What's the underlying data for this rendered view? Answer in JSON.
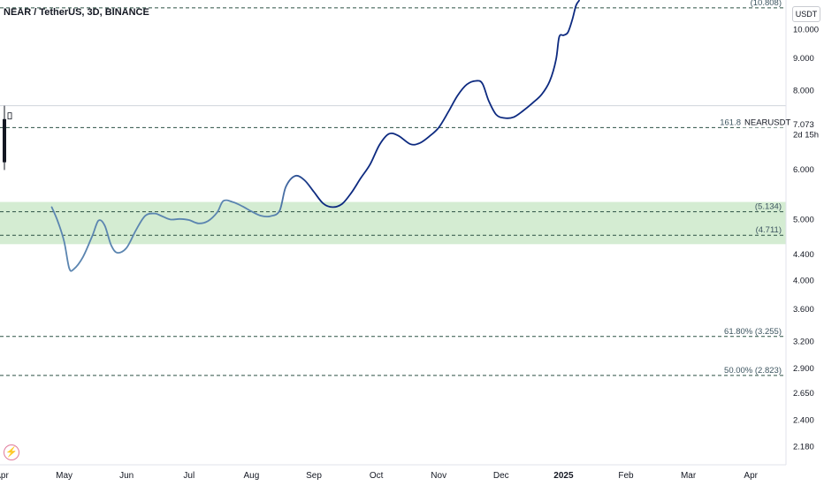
{
  "header": {
    "title": "NEAR / TetherUS, 3D, BINANCE"
  },
  "price_axis": {
    "unit": "USDT",
    "last_price": "7.073",
    "countdown": "2d 15h",
    "symbol_tag": "NEARUSDT"
  },
  "chart_data": {
    "type": "line",
    "y_scale": "log",
    "ylim": [
      2.05,
      11.1
    ],
    "x_tick_labels": [
      "Apr",
      "May",
      "Jun",
      "Jul",
      "Aug",
      "Sep",
      "Oct",
      "Nov",
      "Dec",
      "2025",
      "Feb",
      "Mar",
      "Apr"
    ],
    "y_tick_labels": [
      "10.000",
      "9.000",
      "8.000",
      "7.073",
      "6.000",
      "5.000",
      "4.400",
      "4.000",
      "3.600",
      "3.200",
      "2.900",
      "2.650",
      "2.400",
      "2.180"
    ],
    "y_tick_values": [
      10.0,
      9.0,
      8.0,
      7.073,
      6.0,
      5.0,
      4.4,
      4.0,
      3.6,
      3.2,
      2.9,
      2.65,
      2.4,
      2.18
    ],
    "series": [
      {
        "line_color_early": "#5b85b0",
        "line_color_late": "#0d2a80",
        "points": [
          [
            0.8,
            5.22
          ],
          [
            0.9,
            4.95
          ],
          [
            1.0,
            4.6
          ],
          [
            1.08,
            4.18
          ],
          [
            1.15,
            4.16
          ],
          [
            1.3,
            4.35
          ],
          [
            1.45,
            4.7
          ],
          [
            1.55,
            4.97
          ],
          [
            1.65,
            4.88
          ],
          [
            1.75,
            4.55
          ],
          [
            1.85,
            4.42
          ],
          [
            2.0,
            4.5
          ],
          [
            2.15,
            4.8
          ],
          [
            2.3,
            5.06
          ],
          [
            2.45,
            5.1
          ],
          [
            2.55,
            5.06
          ],
          [
            2.7,
            4.99
          ],
          [
            2.85,
            5.0
          ],
          [
            3.0,
            4.98
          ],
          [
            3.15,
            4.92
          ],
          [
            3.3,
            4.96
          ],
          [
            3.45,
            5.12
          ],
          [
            3.55,
            5.34
          ],
          [
            3.7,
            5.32
          ],
          [
            3.85,
            5.24
          ],
          [
            4.0,
            5.14
          ],
          [
            4.15,
            5.06
          ],
          [
            4.3,
            5.05
          ],
          [
            4.45,
            5.15
          ],
          [
            4.55,
            5.62
          ],
          [
            4.7,
            5.85
          ],
          [
            4.85,
            5.76
          ],
          [
            5.0,
            5.52
          ],
          [
            5.15,
            5.29
          ],
          [
            5.3,
            5.22
          ],
          [
            5.45,
            5.28
          ],
          [
            5.6,
            5.5
          ],
          [
            5.75,
            5.8
          ],
          [
            5.9,
            6.1
          ],
          [
            6.05,
            6.55
          ],
          [
            6.2,
            6.82
          ],
          [
            6.35,
            6.78
          ],
          [
            6.55,
            6.57
          ],
          [
            6.7,
            6.6
          ],
          [
            6.85,
            6.76
          ],
          [
            7.0,
            6.98
          ],
          [
            7.15,
            7.38
          ],
          [
            7.3,
            7.84
          ],
          [
            7.45,
            8.17
          ],
          [
            7.6,
            8.28
          ],
          [
            7.7,
            8.2
          ],
          [
            7.8,
            7.7
          ],
          [
            7.92,
            7.32
          ],
          [
            8.05,
            7.23
          ],
          [
            8.2,
            7.25
          ],
          [
            8.35,
            7.42
          ],
          [
            8.5,
            7.63
          ],
          [
            8.65,
            7.88
          ],
          [
            8.78,
            8.28
          ],
          [
            8.88,
            8.95
          ],
          [
            8.93,
            9.72
          ],
          [
            9.0,
            9.78
          ],
          [
            9.07,
            9.88
          ],
          [
            9.14,
            10.35
          ],
          [
            9.2,
            10.9
          ],
          [
            9.25,
            11.1
          ]
        ]
      }
    ],
    "fib_levels": [
      {
        "label": "161.8",
        "value": 6.98
      },
      {
        "label": "(5.134)",
        "value": 5.134
      },
      {
        "label": "(4.711)",
        "value": 4.711
      },
      {
        "label": "61.80% (3.255)",
        "value": 3.255
      },
      {
        "label": "50.00% (2.823)",
        "value": 2.823
      },
      {
        "label": "(10.808)",
        "value": 10.808
      }
    ],
    "support_zone": {
      "low": 4.56,
      "high": 5.32,
      "color": "#d4ecd2"
    },
    "candle": {
      "open": 6.15,
      "high": 7.56,
      "low": 5.98,
      "close": 7.2
    },
    "colors": {
      "dashes": "#2c5245",
      "axis_text": "#131722"
    }
  }
}
